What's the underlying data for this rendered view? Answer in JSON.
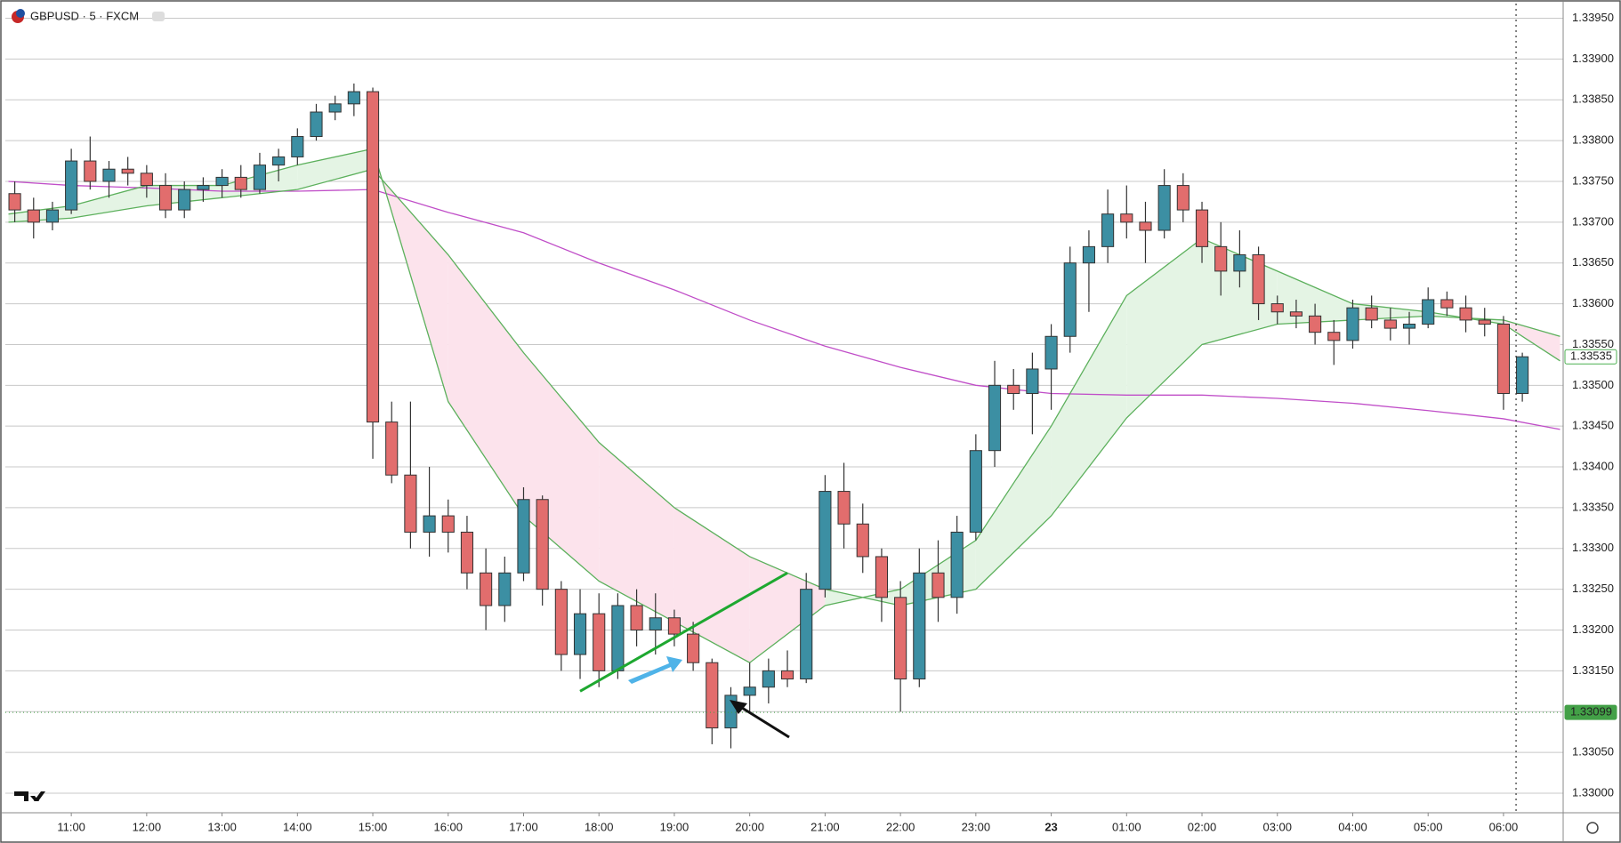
{
  "chart_data": {
    "type": "candlestick",
    "title": "GBPUSD · 5 · FXCM",
    "x": [
      1,
      4,
      7,
      10,
      13,
      16,
      19,
      22,
      25,
      28,
      31,
      34,
      37,
      40,
      43,
      46,
      49,
      52,
      55,
      58,
      61,
      64,
      67,
      70,
      73,
      76,
      79,
      82,
      85,
      88,
      91,
      94,
      97,
      100,
      103,
      106,
      109,
      112,
      115,
      118,
      121,
      124,
      127,
      130,
      133,
      136,
      139,
      142,
      145,
      148,
      151,
      154,
      157,
      160,
      163,
      166,
      169,
      172,
      175,
      178,
      181,
      184,
      187,
      190,
      193,
      196,
      199,
      202,
      205,
      208,
      211,
      214,
      217,
      220,
      223,
      226,
      229,
      232,
      235,
      238,
      241
    ],
    "open": [
      1.33735,
      1.33715,
      1.337,
      1.33715,
      1.33775,
      1.3375,
      1.33765,
      1.3376,
      1.33745,
      1.33715,
      1.3374,
      1.33745,
      1.33755,
      1.3374,
      1.3377,
      1.3378,
      1.33805,
      1.33835,
      1.33845,
      1.3386,
      1.33455,
      1.3339,
      1.3332,
      1.3334,
      1.3332,
      1.3327,
      1.3323,
      1.3327,
      1.3336,
      1.3325,
      1.3317,
      1.3322,
      1.3315,
      1.3323,
      1.332,
      1.33215,
      1.33195,
      1.3316,
      1.3308,
      1.3312,
      1.3313,
      1.3315,
      1.3314,
      1.3325,
      1.3337,
      1.3333,
      1.3329,
      1.3324,
      1.3314,
      1.3327,
      1.3324,
      1.3332,
      1.3342,
      1.335,
      1.3349,
      1.3352,
      1.3356,
      1.3365,
      1.3367,
      1.3371,
      1.337,
      1.3369,
      1.33745,
      1.33715,
      1.3367,
      1.3364,
      1.3366,
      1.336,
      1.3359,
      1.33585,
      1.33565,
      1.33555,
      1.33595,
      1.3358,
      1.3357,
      1.33575,
      1.33605,
      1.33595,
      1.3358,
      1.33575,
      1.3349
    ],
    "high": [
      1.3375,
      1.3373,
      1.33725,
      1.3379,
      1.33805,
      1.33775,
      1.3378,
      1.3377,
      1.3376,
      1.3375,
      1.33755,
      1.33765,
      1.3377,
      1.33785,
      1.3379,
      1.33815,
      1.33845,
      1.33855,
      1.3387,
      1.33865,
      1.3348,
      1.3348,
      1.334,
      1.3336,
      1.3334,
      1.333,
      1.3329,
      1.33375,
      1.33365,
      1.3326,
      1.3325,
      1.33245,
      1.33245,
      1.3325,
      1.33245,
      1.33225,
      1.3321,
      1.33165,
      1.3313,
      1.3316,
      1.33165,
      1.33175,
      1.3327,
      1.3339,
      1.33405,
      1.33355,
      1.333,
      1.3326,
      1.333,
      1.3331,
      1.3334,
      1.3344,
      1.3353,
      1.3352,
      1.3354,
      1.33575,
      1.3367,
      1.3369,
      1.3374,
      1.33745,
      1.33725,
      1.33765,
      1.3376,
      1.33725,
      1.337,
      1.3369,
      1.3367,
      1.3361,
      1.33605,
      1.336,
      1.3358,
      1.33605,
      1.3361,
      1.33595,
      1.3359,
      1.3362,
      1.33615,
      1.3361,
      1.33595,
      1.33585,
      1.3354
    ],
    "low": [
      1.337,
      1.3368,
      1.3369,
      1.3371,
      1.3374,
      1.3373,
      1.33745,
      1.3373,
      1.33705,
      1.33705,
      1.33725,
      1.3373,
      1.3373,
      1.33735,
      1.3375,
      1.3377,
      1.338,
      1.33825,
      1.3383,
      1.3341,
      1.3338,
      1.333,
      1.3329,
      1.33295,
      1.3325,
      1.332,
      1.3321,
      1.3326,
      1.3323,
      1.3315,
      1.3314,
      1.3313,
      1.3314,
      1.3318,
      1.3317,
      1.3318,
      1.3315,
      1.3306,
      1.33055,
      1.331,
      1.3311,
      1.3313,
      1.33135,
      1.3324,
      1.333,
      1.3327,
      1.3321,
      1.331,
      1.3313,
      1.3321,
      1.3322,
      1.3331,
      1.334,
      1.3347,
      1.3344,
      1.3347,
      1.3354,
      1.3359,
      1.3365,
      1.3368,
      1.3365,
      1.3368,
      1.337,
      1.3365,
      1.3361,
      1.3362,
      1.3358,
      1.33575,
      1.3357,
      1.3355,
      1.33525,
      1.33545,
      1.3357,
      1.33555,
      1.3355,
      1.3357,
      1.33585,
      1.33565,
      1.3356,
      1.3347,
      1.3348
    ],
    "close": [
      1.33715,
      1.337,
      1.33715,
      1.33775,
      1.3375,
      1.33765,
      1.3376,
      1.33745,
      1.33715,
      1.3374,
      1.33745,
      1.33755,
      1.3374,
      1.3377,
      1.3378,
      1.33805,
      1.33835,
      1.33845,
      1.3386,
      1.33455,
      1.3339,
      1.3332,
      1.3334,
      1.3332,
      1.3327,
      1.3323,
      1.3327,
      1.3336,
      1.3325,
      1.3317,
      1.3322,
      1.3315,
      1.3323,
      1.332,
      1.33215,
      1.33195,
      1.3316,
      1.3308,
      1.3312,
      1.3313,
      1.3315,
      1.3314,
      1.3325,
      1.3337,
      1.3333,
      1.3329,
      1.3324,
      1.3314,
      1.3327,
      1.3324,
      1.3332,
      1.3342,
      1.335,
      1.3349,
      1.3352,
      1.3356,
      1.3365,
      1.3367,
      1.3371,
      1.337,
      1.3369,
      1.33745,
      1.33715,
      1.3367,
      1.3364,
      1.3366,
      1.336,
      1.3359,
      1.33585,
      1.33565,
      1.33555,
      1.33595,
      1.3358,
      1.3357,
      1.33575,
      1.33605,
      1.33595,
      1.3358,
      1.33575,
      1.3349,
      1.33535
    ],
    "up_color": "#3c8fa3",
    "down_color": "#e26d6d",
    "indicator_x": [
      0,
      10,
      22,
      34,
      46,
      58,
      70,
      82,
      94,
      106,
      118,
      130,
      142,
      154,
      166,
      178,
      190,
      202,
      214,
      226,
      238,
      247
    ],
    "indicators": [
      {
        "color": "#c04ec8",
        "values": [
          1.3375,
          1.33745,
          1.33742,
          1.33738,
          1.33738,
          1.3374,
          1.33712,
          1.33687,
          1.3365,
          1.33617,
          1.3358,
          1.33548,
          1.33522,
          1.335,
          1.3349,
          1.33488,
          1.33488,
          1.33484,
          1.33478,
          1.33469,
          1.33459,
          1.33446
        ]
      },
      {
        "color": "#5cb05c",
        "values": [
          1.3371,
          1.3372,
          1.33745,
          1.33745,
          1.3377,
          1.3379,
          1.3348,
          1.3334,
          1.3326,
          1.3321,
          1.3316,
          1.3323,
          1.3325,
          1.3331,
          1.3345,
          1.3361,
          1.3368,
          1.3364,
          1.336,
          1.3359,
          1.33575,
          1.3353
        ]
      },
      {
        "color": "#5cb05c",
        "values": [
          1.337,
          1.33705,
          1.3372,
          1.3373,
          1.3374,
          1.33765,
          1.3366,
          1.3354,
          1.3343,
          1.3335,
          1.3329,
          1.3325,
          1.3323,
          1.3325,
          1.3334,
          1.3346,
          1.3355,
          1.33575,
          1.3358,
          1.33585,
          1.3358,
          1.3356
        ]
      }
    ],
    "band_colors": {
      "above": "#e4f4e4",
      "below": "#fce3ec"
    },
    "xlim": [
      -0.5,
      247.5
    ],
    "ylim": [
      1.32976,
      1.33968
    ],
    "xticks": [
      {
        "value": 10,
        "label": "11:00"
      },
      {
        "value": 22,
        "label": "12:00"
      },
      {
        "value": 34,
        "label": "13:00"
      },
      {
        "value": 46,
        "label": "14:00"
      },
      {
        "value": 58,
        "label": "15:00"
      },
      {
        "value": 70,
        "label": "16:00"
      },
      {
        "value": 82,
        "label": "17:00"
      },
      {
        "value": 94,
        "label": "18:00"
      },
      {
        "value": 106,
        "label": "19:00"
      },
      {
        "value": 118,
        "label": "20:00"
      },
      {
        "value": 130,
        "label": "21:00"
      },
      {
        "value": 142,
        "label": "22:00"
      },
      {
        "value": 154,
        "label": "23:00"
      },
      {
        "value": 166,
        "label": "23"
      },
      {
        "value": 178,
        "label": "01:00"
      },
      {
        "value": 190,
        "label": "02:00"
      },
      {
        "value": 202,
        "label": "03:00"
      },
      {
        "value": 214,
        "label": "04:00"
      },
      {
        "value": 226,
        "label": "05:00"
      },
      {
        "value": 238,
        "label": "06:00"
      }
    ],
    "yticks": [
      {
        "value": 1.33,
        "label": "1.33000"
      },
      {
        "value": 1.3305,
        "label": "1.33050"
      },
      {
        "value": 1.331,
        "label": "1.33100"
      },
      {
        "value": 1.3315,
        "label": "1.33150"
      },
      {
        "value": 1.332,
        "label": "1.33200"
      },
      {
        "value": 1.3325,
        "label": "1.33250"
      },
      {
        "value": 1.333,
        "label": "1.33300"
      },
      {
        "value": 1.3335,
        "label": "1.33350"
      },
      {
        "value": 1.334,
        "label": "1.33400"
      },
      {
        "value": 1.3345,
        "label": "1.33450"
      },
      {
        "value": 1.335,
        "label": "1.33500"
      },
      {
        "value": 1.3355,
        "label": "1.33550"
      },
      {
        "value": 1.336,
        "label": "1.33600"
      },
      {
        "value": 1.3365,
        "label": "1.33650"
      },
      {
        "value": 1.337,
        "label": "1.33700"
      },
      {
        "value": 1.3375,
        "label": "1.33750"
      },
      {
        "value": 1.338,
        "label": "1.33800"
      },
      {
        "value": 1.3385,
        "label": "1.33850"
      },
      {
        "value": 1.339,
        "label": "1.33900"
      },
      {
        "value": 1.3395,
        "label": "1.33950"
      }
    ],
    "grid": "horizontal",
    "price_labels": [
      {
        "value": 1.33535,
        "label": "1.33535",
        "filled": false,
        "color": "#4caf50"
      },
      {
        "value": 1.33099,
        "label": "1.33099",
        "filled": true,
        "color": "#43a047",
        "line": true
      }
    ],
    "crosshair_x": 240,
    "trend_line": {
      "x": [
        91,
        124
      ],
      "y": [
        1.33125,
        1.3327
      ],
      "color": "#1ea830"
    }
  }
}
